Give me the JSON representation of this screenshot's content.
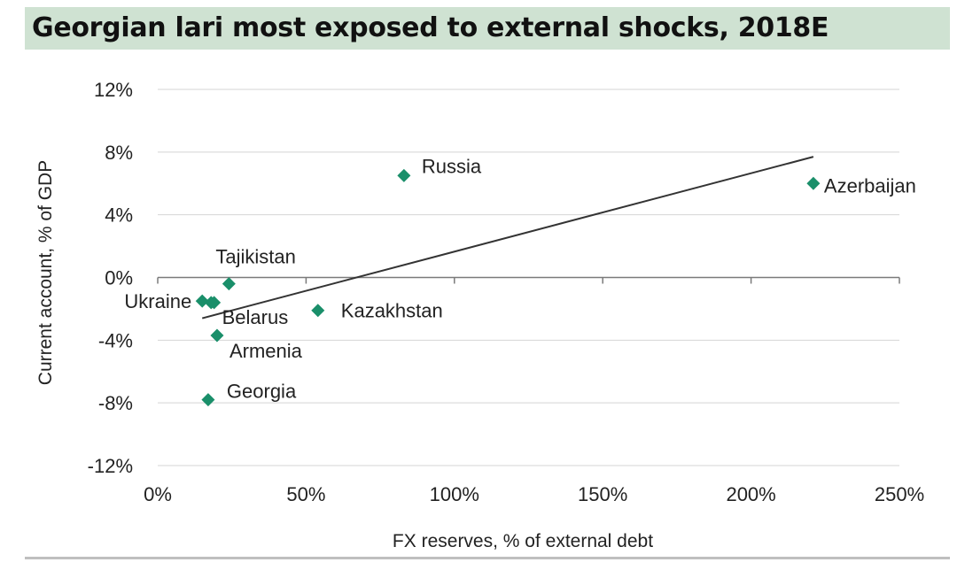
{
  "chart_data": {
    "type": "scatter",
    "title": "Georgian lari most exposed to external shocks, 2018E",
    "xlabel": "FX reserves, % of external debt",
    "ylabel": "Current account, % of GDP",
    "xlim": [
      0,
      250
    ],
    "ylim": [
      -12,
      12
    ],
    "x_ticks": [
      0,
      50,
      100,
      150,
      200,
      250
    ],
    "x_tick_labels": [
      "0%",
      "50%",
      "100%",
      "150%",
      "200%",
      "250%"
    ],
    "y_ticks": [
      12,
      8,
      4,
      0,
      -4,
      -8,
      -12
    ],
    "y_tick_labels": [
      "12%",
      "8%",
      "4%",
      "0%",
      "-4%",
      "-8%",
      "-12%"
    ],
    "grid": "horizontal",
    "marker": "diamond",
    "marker_color": "#1a8f6a",
    "points": [
      {
        "label": "Russia",
        "x": 83,
        "y": 6.5
      },
      {
        "label": "Azerbaijan",
        "x": 221,
        "y": 6.0
      },
      {
        "label": "Tajikistan",
        "x": 24,
        "y": -0.4
      },
      {
        "label": "Ukraine",
        "x": 15,
        "y": -1.5
      },
      {
        "label": "",
        "x": 18,
        "y": -1.6
      },
      {
        "label": "Belarus",
        "x": 19,
        "y": -1.6
      },
      {
        "label": "Kazakhstan",
        "x": 54,
        "y": -2.1
      },
      {
        "label": "Armenia",
        "x": 20,
        "y": -3.7
      },
      {
        "label": "Georgia",
        "x": 17,
        "y": -7.8
      }
    ],
    "trendline": {
      "x": [
        15,
        221
      ],
      "y": [
        -2.6,
        7.7
      ]
    }
  }
}
